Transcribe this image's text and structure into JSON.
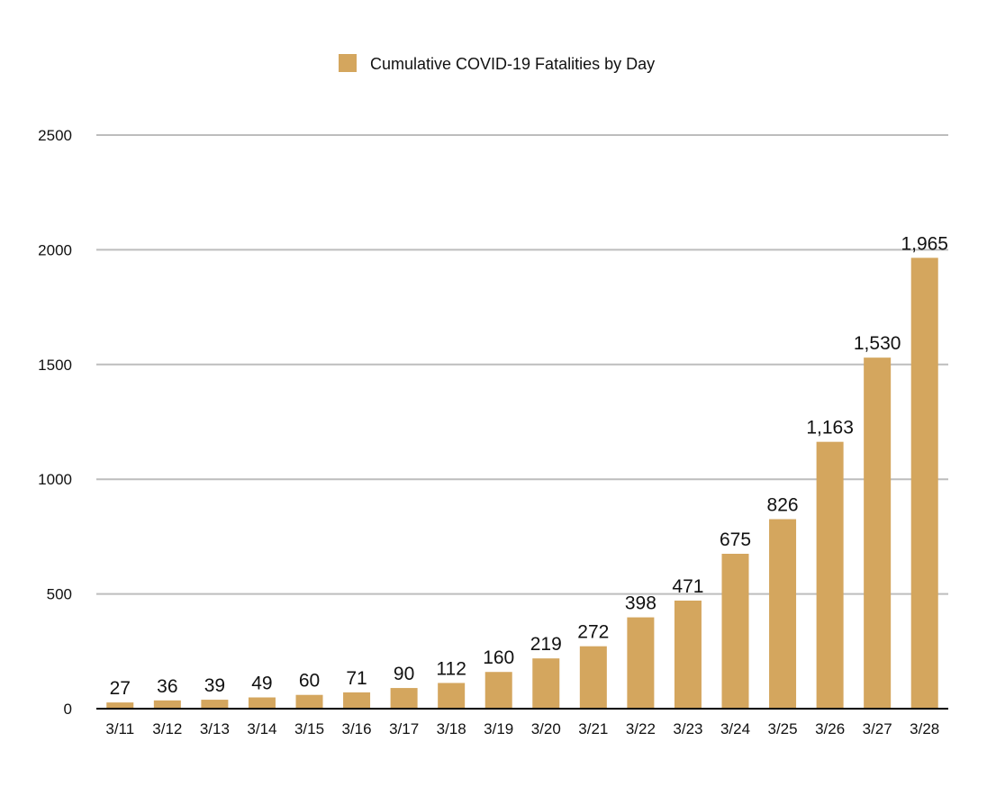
{
  "chart_data": {
    "type": "bar",
    "title": "",
    "xlabel": "",
    "ylabel": "",
    "legend": {
      "position": "top-center",
      "entries": [
        "Cumulative COVID-19 Fatalities by Day"
      ]
    },
    "ylim": [
      0,
      2500
    ],
    "yticks": [
      "0",
      "500",
      "1000",
      "1500",
      "2000",
      "2500"
    ],
    "grid": true,
    "colors": {
      "bar": "#D4A65E",
      "grid": "#BDBDBD",
      "axis": "#000000"
    },
    "categories": [
      "3/11",
      "3/12",
      "3/13",
      "3/14",
      "3/15",
      "3/16",
      "3/17",
      "3/18",
      "3/19",
      "3/20",
      "3/21",
      "3/22",
      "3/23",
      "3/24",
      "3/25",
      "3/26",
      "3/27",
      "3/28"
    ],
    "series": [
      {
        "name": "Cumulative COVID-19 Fatalities by Day",
        "values": [
          27,
          36,
          39,
          49,
          60,
          71,
          90,
          112,
          160,
          219,
          272,
          398,
          471,
          675,
          826,
          1163,
          1530,
          1965
        ],
        "labels": [
          "27",
          "36",
          "39",
          "49",
          "60",
          "71",
          "90",
          "112",
          "160",
          "219",
          "272",
          "398",
          "471",
          "675",
          "826",
          "1,163",
          "1,530",
          "1,965"
        ]
      }
    ]
  }
}
